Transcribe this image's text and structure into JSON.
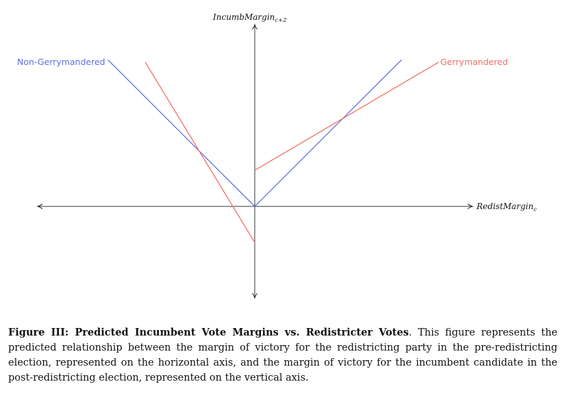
{
  "figure": {
    "x_axis_label": {
      "main": "RedistMargin",
      "sub": "c"
    },
    "y_axis_label": {
      "main": "IncumbMargin",
      "sub": "c+2"
    },
    "colors": {
      "non_gerrymandered": "#5b6fe0",
      "gerrymandered": "#ee6f64",
      "axis": "#333333"
    }
  },
  "chart_data": {
    "type": "line",
    "xlabel": "RedistMargin_c",
    "ylabel": "IncumbMargin_c+2",
    "xlim": [
      -10,
      10
    ],
    "ylim": [
      -4.2,
      8.5
    ],
    "grid": false,
    "series": [
      {
        "name": "Non-Gerrymandered",
        "color": "#5b6fe0",
        "segments": [
          [
            [
              -6.7,
              6.7
            ],
            [
              0,
              0
            ]
          ],
          [
            [
              0,
              0
            ],
            [
              6.7,
              6.7
            ]
          ]
        ]
      },
      {
        "name": "Gerrymandered",
        "color": "#ee6f64",
        "segments": [
          [
            [
              -5.0,
              6.6
            ],
            [
              0,
              -1.65
            ]
          ],
          [
            [
              0,
              1.65
            ],
            [
              8.4,
              6.6
            ]
          ]
        ]
      }
    ]
  },
  "caption": {
    "title": "Figure III: Predicted Incumbent Vote Margins vs.  Redistricter Votes",
    "body": ". This figure represents the predicted relationship between the margin of victory for the redistricting party in the pre-redistricting election, represented on the horizontal axis, and the margin of victory for the incumbent candidate in the post-redistricting election, represented on the vertical axis."
  }
}
